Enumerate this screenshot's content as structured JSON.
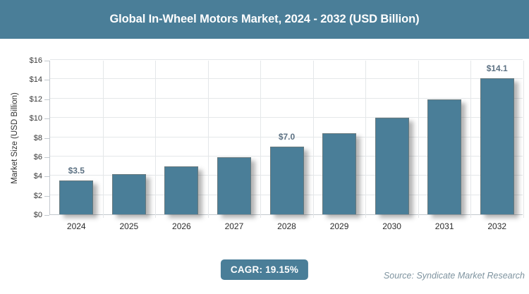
{
  "header": {
    "title": "Global In-Wheel Motors Market, 2024 - 2032 (USD Billion)"
  },
  "chart_data": {
    "type": "bar",
    "title": "Global In-Wheel Motors Market, 2024 - 2032 (USD Billion)",
    "categories": [
      "2024",
      "2025",
      "2026",
      "2027",
      "2028",
      "2029",
      "2030",
      "2031",
      "2032"
    ],
    "values": [
      3.5,
      4.2,
      5.0,
      5.9,
      7.0,
      8.4,
      10.0,
      11.9,
      14.1
    ],
    "bar_labels": [
      "$3.5",
      "",
      "",
      "",
      "$7.0",
      "",
      "",
      "",
      "$14.1"
    ],
    "xlabel": "",
    "ylabel": "Market Size (USD Billion)",
    "ylim": [
      0,
      16
    ],
    "ytick_step": 2,
    "ytick_labels": [
      "$0",
      "$2",
      "$4",
      "$6",
      "$8",
      "$10",
      "$12",
      "$14",
      "$16"
    ],
    "grid": true,
    "legend_position": "none",
    "bar_color": "#4A7E98"
  },
  "footer": {
    "cagr_label": "CAGR: 19.15%",
    "source": "Source: Syndicate Market Research"
  },
  "colors": {
    "page_bg": "#ffffff",
    "accent": "#4A7E98",
    "banner_bg": "#4A7E98",
    "bar_fill": "#4A7E98",
    "bar_label": "#5C7183",
    "axis_text": "#333333",
    "tick_text": "#3a3a3a",
    "grid_line": "#e4e7e9",
    "axis_line": "#c2c8cd",
    "source_text": "#7E939F",
    "title_text": "#ffffff"
  }
}
